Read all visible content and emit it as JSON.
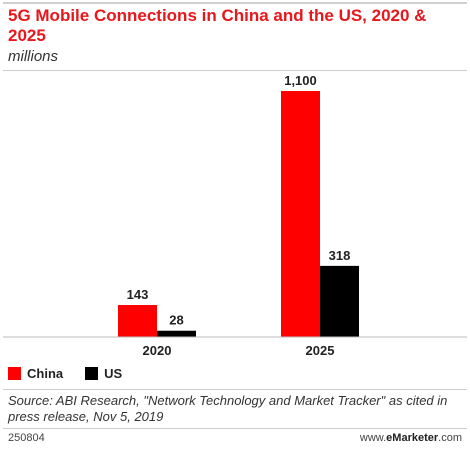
{
  "header": {
    "title": "5G Mobile Connections in China and the US, 2020 & 2025",
    "subtitle": "millions"
  },
  "footer": {
    "source": "Source: ABI Research, \"Network Technology and Market Tracker\" as cited in press release, Nov 5, 2019",
    "chart_id": "250804",
    "brand_prefix": "www.",
    "brand_name": "eMarketer",
    "brand_suffix": ".com"
  },
  "colors": {
    "China": "#ff0000",
    "US": "#000000"
  },
  "chart_data": {
    "type": "bar",
    "title": "5G Mobile Connections in China and the US, 2020 & 2025",
    "subtitle": "millions",
    "categories": [
      "2020",
      "2025"
    ],
    "series": [
      {
        "name": "China",
        "values": [
          143,
          1100
        ],
        "labels": [
          "143",
          "1,100"
        ]
      },
      {
        "name": "US",
        "values": [
          28,
          318
        ],
        "labels": [
          "28",
          "318"
        ]
      }
    ],
    "ylim": [
      0,
      1100
    ],
    "grid": false,
    "legend_position": "bottom-left",
    "xlabel": "",
    "ylabel": ""
  }
}
